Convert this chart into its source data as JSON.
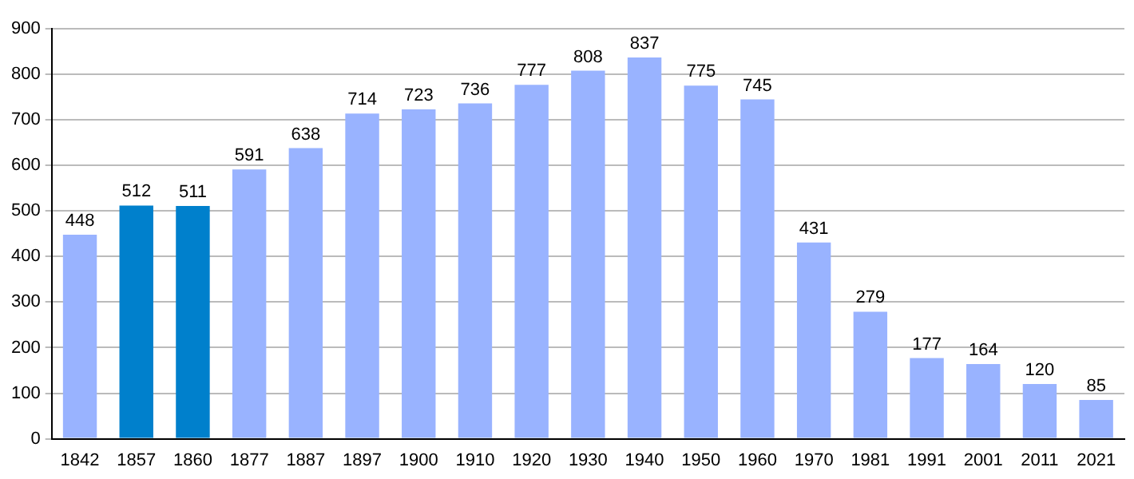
{
  "chart_data": {
    "type": "bar",
    "categories": [
      "1842",
      "1857",
      "1860",
      "1877",
      "1887",
      "1897",
      "1900",
      "1910",
      "1920",
      "1930",
      "1940",
      "1950",
      "1960",
      "1970",
      "1981",
      "1991",
      "2001",
      "2011",
      "2021"
    ],
    "values": [
      448,
      512,
      511,
      591,
      638,
      714,
      723,
      736,
      777,
      808,
      837,
      775,
      745,
      431,
      279,
      177,
      164,
      120,
      85
    ],
    "colors": [
      "#99b3ff",
      "#0080cc",
      "#0080cc",
      "#99b3ff",
      "#99b3ff",
      "#99b3ff",
      "#99b3ff",
      "#99b3ff",
      "#99b3ff",
      "#99b3ff",
      "#99b3ff",
      "#99b3ff",
      "#99b3ff",
      "#99b3ff",
      "#99b3ff",
      "#99b3ff",
      "#99b3ff",
      "#99b3ff",
      "#99b3ff"
    ],
    "ylim": [
      0,
      900
    ],
    "yticks": [
      0,
      100,
      200,
      300,
      400,
      500,
      600,
      700,
      800,
      900
    ],
    "grid": "y",
    "data_labels": true
  }
}
